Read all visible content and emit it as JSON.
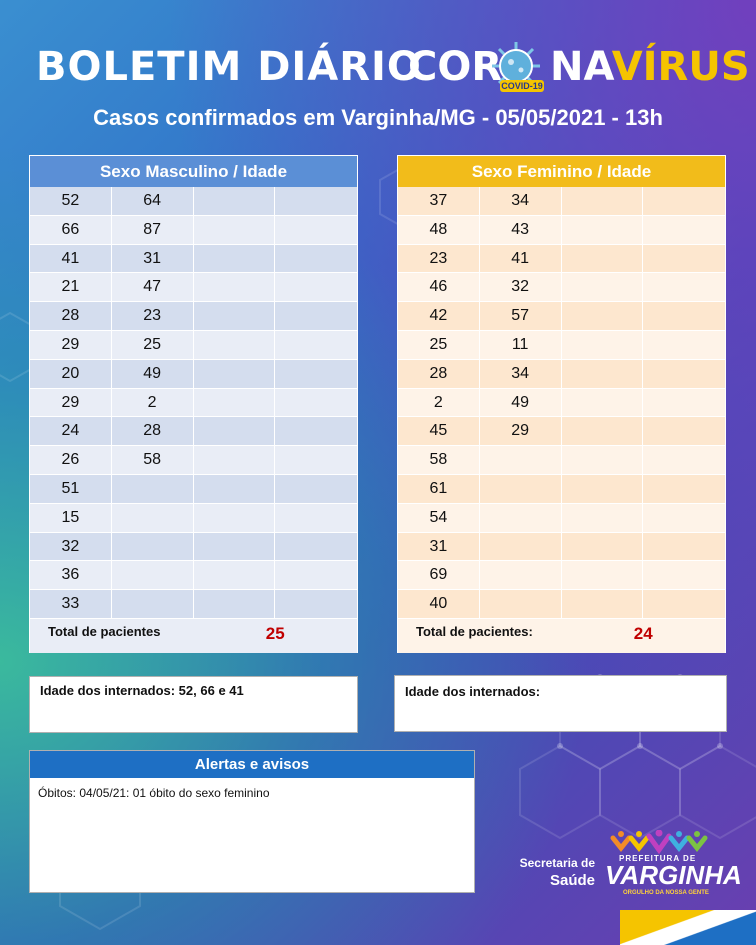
{
  "header": {
    "title_part1": "BOLETIM DIÁRIO",
    "title_part2": "COR",
    "title_part3": "NA",
    "title_part4": "VÍRUS",
    "covid_tag": "COVID-19",
    "subtitle": "Casos confirmados em Varginha/MG - 05/05/2021 - 13h"
  },
  "male_table": {
    "header": "Sexo Masculino / Idade",
    "rows": [
      [
        "52",
        "64",
        "",
        ""
      ],
      [
        "66",
        "87",
        "",
        ""
      ],
      [
        "41",
        "31",
        "",
        ""
      ],
      [
        "21",
        "47",
        "",
        ""
      ],
      [
        "28",
        "23",
        "",
        ""
      ],
      [
        "29",
        "25",
        "",
        ""
      ],
      [
        "20",
        "49",
        "",
        ""
      ],
      [
        "29",
        "2",
        "",
        ""
      ],
      [
        "24",
        "28",
        "",
        ""
      ],
      [
        "26",
        "58",
        "",
        ""
      ],
      [
        "51",
        "",
        "",
        ""
      ],
      [
        "15",
        "",
        "",
        ""
      ],
      [
        "32",
        "",
        "",
        ""
      ],
      [
        "36",
        "",
        "",
        ""
      ],
      [
        "33",
        "",
        "",
        ""
      ]
    ],
    "total_label": "Total de pacientes",
    "total_value": "25"
  },
  "female_table": {
    "header": "Sexo Feminino / Idade",
    "rows": [
      [
        "37",
        "34",
        "",
        ""
      ],
      [
        "48",
        "43",
        "",
        ""
      ],
      [
        "23",
        "41",
        "",
        ""
      ],
      [
        "46",
        "32",
        "",
        ""
      ],
      [
        "42",
        "57",
        "",
        ""
      ],
      [
        "25",
        "11",
        "",
        ""
      ],
      [
        "28",
        "34",
        "",
        ""
      ],
      [
        "2",
        "49",
        "",
        ""
      ],
      [
        "45",
        "29",
        "",
        ""
      ],
      [
        "58",
        "",
        "",
        ""
      ],
      [
        "61",
        "",
        "",
        ""
      ],
      [
        "54",
        "",
        "",
        ""
      ],
      [
        "31",
        "",
        "",
        ""
      ],
      [
        "69",
        "",
        "",
        ""
      ],
      [
        "40",
        "",
        "",
        ""
      ]
    ],
    "total_label": "Total de pacientes:",
    "total_value": "24"
  },
  "hospitalized": {
    "male": "Idade dos internados: 52, 66 e 41",
    "female": "Idade dos internados:"
  },
  "alerts": {
    "header": "Alertas e avisos",
    "text": "Óbitos: 04/05/21: 01 óbito do sexo feminino"
  },
  "footer": {
    "secretaria_line1": "Secretaria de",
    "secretaria_line2": "Saúde",
    "logo_pref": "PREFEITURA DE",
    "logo_title": "VARGINHA",
    "logo_sub": "ORGULHO DA NOSSA GENTE"
  },
  "colors": {
    "male_header": "#5b8fd6",
    "female_header": "#f2bc1a",
    "alert_header": "#1e6fc4",
    "total_value": "#c00000",
    "accent_yellow": "#f5c400"
  }
}
